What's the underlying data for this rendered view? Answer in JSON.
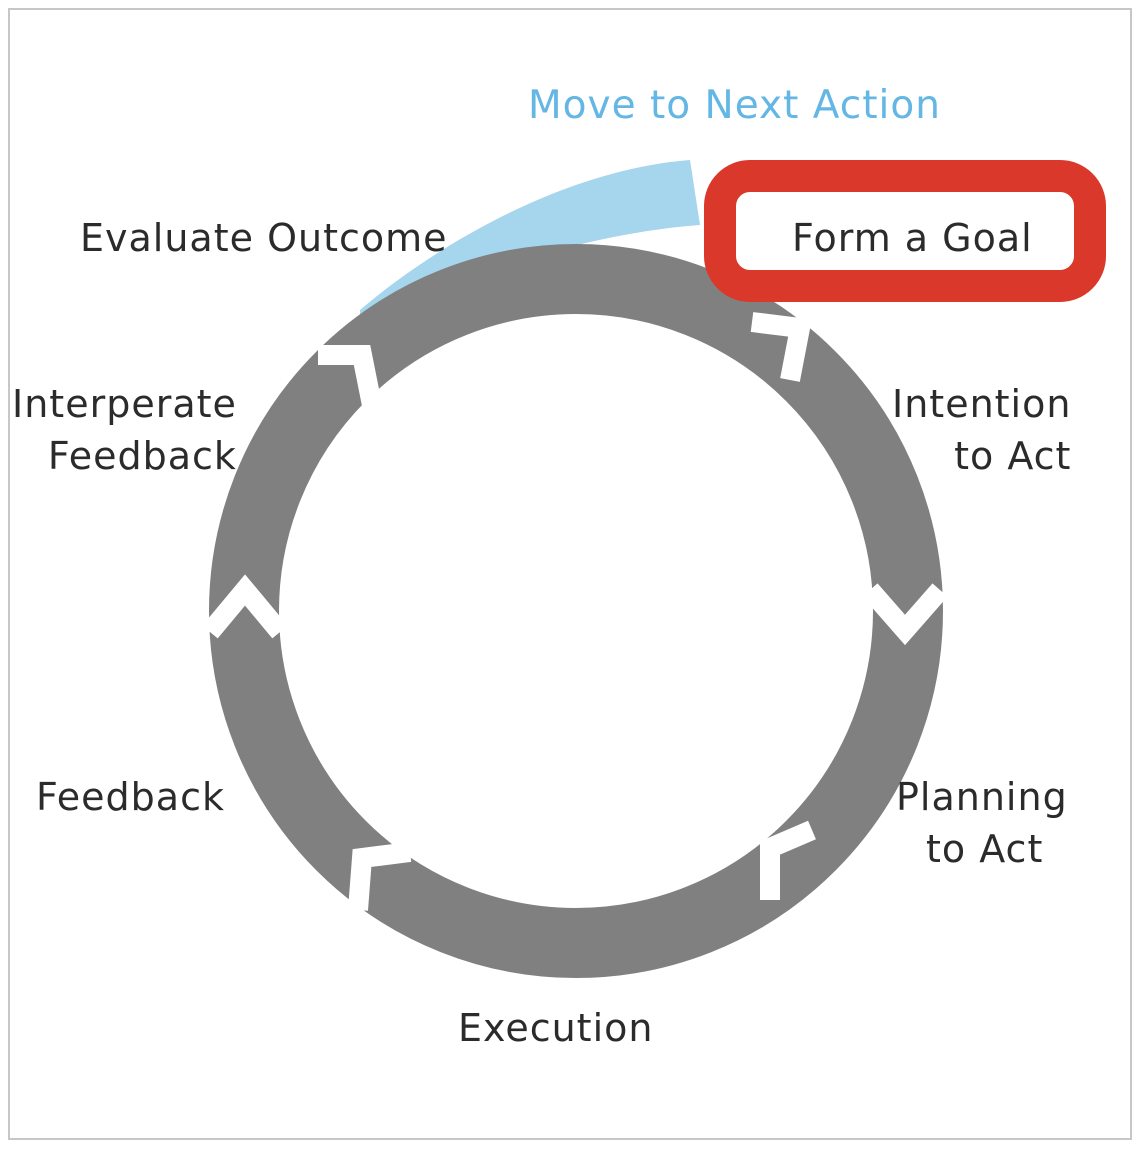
{
  "diagram": {
    "next_action_label": "Move to Next Action",
    "highlighted_step": "Form a Goal",
    "steps": {
      "form_goal": "Form a Goal",
      "intention": [
        "Intention",
        "to Act"
      ],
      "planning": [
        "Planning",
        "to Act"
      ],
      "execution": "Execution",
      "feedback": "Feedback",
      "interpret": [
        "Interperate",
        "Feedback"
      ],
      "evaluate": "Evaluate Outcome"
    },
    "colors": {
      "ring": "#808080",
      "arrow_accent": "#a6d5ee",
      "next_action_text": "#64b6e4",
      "highlight_box": "#d9382a",
      "label_text": "#2b2b2b",
      "frame_border": "#c7c7c7"
    }
  }
}
